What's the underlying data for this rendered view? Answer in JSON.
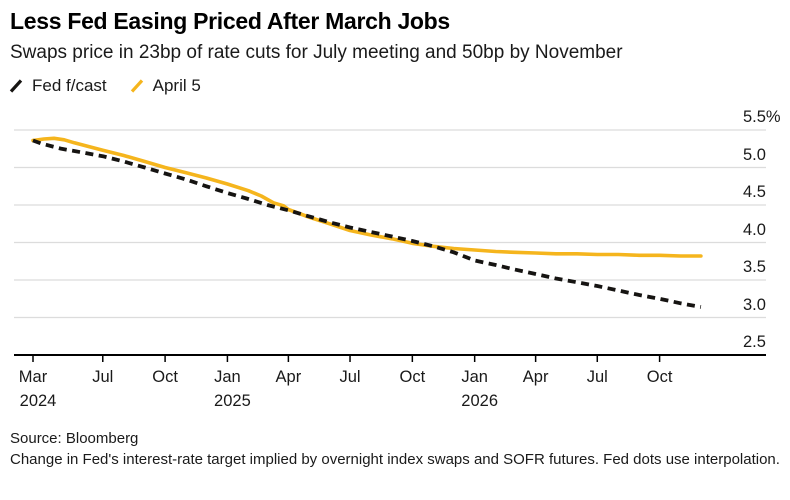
{
  "chart_data": {
    "type": "line",
    "title": "Less Fed Easing Priced After March Jobs",
    "subtitle": "Swaps price in 23bp of rate cuts for July meeting and 50bp by November",
    "legend_position": "top-left",
    "grid": true,
    "unit": "%",
    "colors": {
      "gridline": "#dcdcdc",
      "axis": "#000000",
      "text": "#1a1a1a"
    },
    "y_axis": {
      "min": 2.5,
      "max": 5.5,
      "ticks": [
        5.5,
        5.0,
        4.5,
        4.0,
        3.5,
        3.0,
        2.5
      ],
      "tick_labels": [
        "5.5%",
        "5.0",
        "4.5",
        "4.0",
        "3.5",
        "3.0",
        "2.5"
      ]
    },
    "x_axis": {
      "start": "2024-03-20",
      "end": "2026-12-01",
      "ticks": [
        {
          "date": "2024-03-20",
          "label": "Mar",
          "year": "2024"
        },
        {
          "date": "2024-07-01",
          "label": "Jul",
          "year": ""
        },
        {
          "date": "2024-10-01",
          "label": "Oct",
          "year": ""
        },
        {
          "date": "2025-01-01",
          "label": "Jan",
          "year": "2025"
        },
        {
          "date": "2025-04-01",
          "label": "Apr",
          "year": ""
        },
        {
          "date": "2025-07-01",
          "label": "Jul",
          "year": ""
        },
        {
          "date": "2025-10-01",
          "label": "Oct",
          "year": ""
        },
        {
          "date": "2026-01-01",
          "label": "Jan",
          "year": "2026"
        },
        {
          "date": "2026-04-01",
          "label": "Apr",
          "year": ""
        },
        {
          "date": "2026-07-01",
          "label": "Jul",
          "year": ""
        },
        {
          "date": "2026-10-01",
          "label": "Oct",
          "year": ""
        }
      ]
    },
    "series": [
      {
        "name": "Fed f/cast",
        "style": "dashed",
        "color": "#161412",
        "points": [
          [
            "2024-03-20",
            5.36
          ],
          [
            "2024-04-01",
            5.32
          ],
          [
            "2024-05-01",
            5.25
          ],
          [
            "2024-06-01",
            5.2
          ],
          [
            "2024-07-01",
            5.15
          ],
          [
            "2024-08-01",
            5.08
          ],
          [
            "2024-09-01",
            5.0
          ],
          [
            "2024-10-01",
            4.92
          ],
          [
            "2024-11-01",
            4.84
          ],
          [
            "2024-12-01",
            4.75
          ],
          [
            "2025-01-01",
            4.66
          ],
          [
            "2025-02-01",
            4.58
          ],
          [
            "2025-03-01",
            4.5
          ],
          [
            "2025-04-01",
            4.43
          ],
          [
            "2025-05-01",
            4.35
          ],
          [
            "2025-06-01",
            4.27
          ],
          [
            "2025-07-01",
            4.2
          ],
          [
            "2025-08-01",
            4.14
          ],
          [
            "2025-09-01",
            4.08
          ],
          [
            "2025-10-01",
            4.02
          ],
          [
            "2025-11-01",
            3.95
          ],
          [
            "2025-12-01",
            3.87
          ],
          [
            "2026-01-01",
            3.76
          ],
          [
            "2026-02-01",
            3.7
          ],
          [
            "2026-03-01",
            3.64
          ],
          [
            "2026-04-01",
            3.58
          ],
          [
            "2026-05-01",
            3.52
          ],
          [
            "2026-06-01",
            3.47
          ],
          [
            "2026-07-01",
            3.42
          ],
          [
            "2026-08-01",
            3.36
          ],
          [
            "2026-09-01",
            3.3
          ],
          [
            "2026-10-01",
            3.25
          ],
          [
            "2026-11-01",
            3.19
          ],
          [
            "2026-12-01",
            3.14
          ]
        ]
      },
      {
        "name": "April 5",
        "style": "solid",
        "color": "#F5B51D",
        "points": [
          [
            "2024-03-20",
            5.36
          ],
          [
            "2024-04-05",
            5.38
          ],
          [
            "2024-04-20",
            5.39
          ],
          [
            "2024-05-05",
            5.37
          ],
          [
            "2024-05-20",
            5.33
          ],
          [
            "2024-06-10",
            5.28
          ],
          [
            "2024-07-01",
            5.23
          ],
          [
            "2024-08-01",
            5.16
          ],
          [
            "2024-09-01",
            5.08
          ],
          [
            "2024-10-01",
            5.0
          ],
          [
            "2024-11-01",
            4.93
          ],
          [
            "2024-12-01",
            4.86
          ],
          [
            "2025-01-01",
            4.78
          ],
          [
            "2025-02-01",
            4.69
          ],
          [
            "2025-02-20",
            4.62
          ],
          [
            "2025-03-10",
            4.53
          ],
          [
            "2025-03-25",
            4.49
          ],
          [
            "2025-04-01",
            4.44
          ],
          [
            "2025-05-01",
            4.34
          ],
          [
            "2025-06-01",
            4.25
          ],
          [
            "2025-07-01",
            4.16
          ],
          [
            "2025-08-01",
            4.1
          ],
          [
            "2025-09-01",
            4.05
          ],
          [
            "2025-10-01",
            3.99
          ],
          [
            "2025-11-01",
            3.95
          ],
          [
            "2025-12-01",
            3.92
          ],
          [
            "2026-01-01",
            3.9
          ],
          [
            "2026-02-01",
            3.88
          ],
          [
            "2026-03-01",
            3.87
          ],
          [
            "2026-04-01",
            3.86
          ],
          [
            "2026-05-01",
            3.85
          ],
          [
            "2026-06-01",
            3.85
          ],
          [
            "2026-07-01",
            3.84
          ],
          [
            "2026-08-01",
            3.84
          ],
          [
            "2026-09-01",
            3.83
          ],
          [
            "2026-10-01",
            3.83
          ],
          [
            "2026-11-01",
            3.82
          ],
          [
            "2026-12-01",
            3.82
          ]
        ]
      }
    ]
  },
  "footer": {
    "source": "Source: Bloomberg",
    "note": "Change in Fed's interest-rate target implied by overnight index swaps and SOFR futures. Fed dots use interpolation."
  }
}
